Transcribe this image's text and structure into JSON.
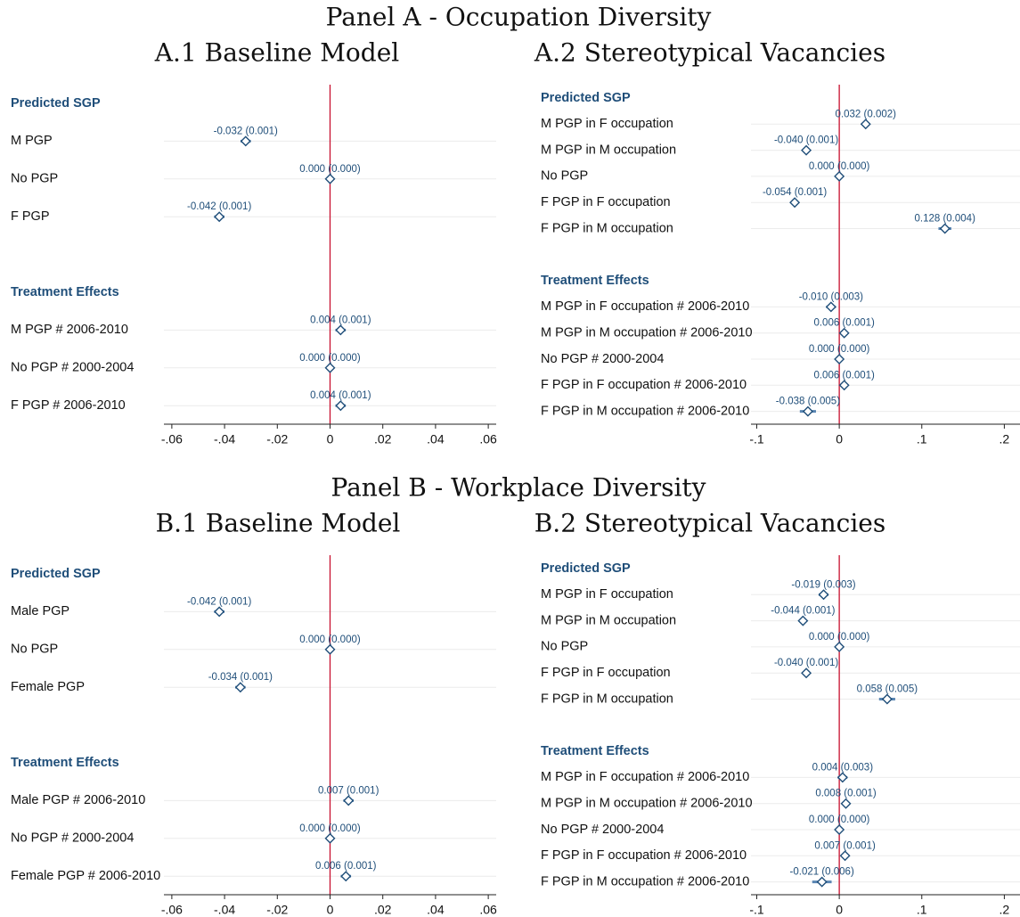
{
  "panel_titles": [
    "Panel A - Occupation Diversity",
    "Panel B - Workplace Diversity"
  ],
  "chart_data": [
    {
      "type": "coefplot",
      "title": "A.1 Baseline Model",
      "color": "#1f4e79",
      "xline": 0,
      "xline_color": "#c8102e",
      "xlim": [
        -0.063,
        0.063
      ],
      "xticks": [
        {
          "value": -0.06,
          "label": "-.06"
        },
        {
          "value": -0.04,
          "label": "-.04"
        },
        {
          "value": -0.02,
          "label": "-.02"
        },
        0,
        {
          "value": 0.02,
          "label": ".02"
        },
        {
          "value": 0.04,
          "label": ".04"
        },
        {
          "value": 0.06,
          "label": ".06"
        }
      ],
      "groups": [
        {
          "name": "Predicted SGP",
          "categories": [
            "M PGP",
            "No PGP",
            "F PGP"
          ],
          "values": [
            -0.032,
            0,
            -0.042
          ],
          "errors": [
            0.001,
            0,
            0.001
          ],
          "value_labels": [
            "-0.032 (0.001)",
            "0.000 (0.000)",
            "-0.042 (0.001)"
          ]
        },
        {
          "name": "Treatment Effects",
          "categories": [
            "M PGP # 2006-2010",
            "No PGP # 2000-2004",
            "F PGP # 2006-2010"
          ],
          "values": [
            0.004,
            0,
            0.004
          ],
          "errors": [
            0.001,
            0,
            0.001
          ],
          "value_labels": [
            "0.004 (0.001)",
            "0.000 (0.000)",
            "0.004 (0.001)"
          ]
        }
      ]
    },
    {
      "type": "coefplot",
      "title": "A.2 Stereotypical Vacancies",
      "color": "#1f4e79",
      "xline": 0,
      "xline_color": "#c8102e",
      "xlim": [
        -0.107,
        0.219
      ],
      "xticks": [
        {
          "value": -0.1,
          "label": "-.1"
        },
        0,
        {
          "value": 0.1,
          "label": ".1"
        },
        {
          "value": 0.2,
          "label": ".2"
        }
      ],
      "groups": [
        {
          "name": "Predicted SGP",
          "categories": [
            "M PGP in F occupation",
            "M PGP in M occupation",
            "No PGP",
            "F PGP in F occupation",
            "F PGP in M occupation"
          ],
          "values": [
            0.032,
            -0.04,
            0,
            -0.054,
            0.128
          ],
          "errors": [
            0.002,
            0.001,
            0,
            0.001,
            0.004
          ],
          "value_labels": [
            "0.032 (0.002)",
            "-0.040 (0.001)",
            "0.000 (0.000)",
            "-0.054 (0.001)",
            "0.128 (0.004)"
          ]
        },
        {
          "name": "Treatment Effects",
          "categories": [
            "M PGP in F occupation # 2006-2010",
            "M PGP in M occupation # 2006-2010",
            "No PGP # 2000-2004",
            "F PGP in F occupation # 2006-2010",
            "F PGP in M occupation # 2006-2010"
          ],
          "values": [
            -0.01,
            0.006,
            0,
            0.006,
            -0.038
          ],
          "errors": [
            0.003,
            0.001,
            0,
            0.001,
            0.005
          ],
          "value_labels": [
            "-0.010 (0.003)",
            "0.006 (0.001)",
            "0.000 (0.000)",
            "0.006 (0.001)",
            "-0.038 (0.005)"
          ]
        }
      ]
    },
    {
      "type": "coefplot",
      "title": "B.1 Baseline Model",
      "color": "#1f4e79",
      "xline": 0,
      "xline_color": "#c8102e",
      "xlim": [
        -0.063,
        0.063
      ],
      "xticks": [
        {
          "value": -0.06,
          "label": "-.06"
        },
        {
          "value": -0.04,
          "label": "-.04"
        },
        {
          "value": -0.02,
          "label": "-.02"
        },
        0,
        {
          "value": 0.02,
          "label": ".02"
        },
        {
          "value": 0.04,
          "label": ".04"
        },
        {
          "value": 0.06,
          "label": ".06"
        }
      ],
      "groups": [
        {
          "name": "Predicted SGP",
          "categories": [
            "Male PGP",
            "No PGP",
            "Female PGP"
          ],
          "values": [
            -0.042,
            0,
            -0.034
          ],
          "errors": [
            0.001,
            0,
            0.001
          ],
          "value_labels": [
            "-0.042 (0.001)",
            "0.000 (0.000)",
            "-0.034 (0.001)"
          ]
        },
        {
          "name": "Treatment Effects",
          "categories": [
            "Male PGP # 2006-2010",
            "No PGP # 2000-2004",
            "Female PGP # 2006-2010"
          ],
          "values": [
            0.007,
            0,
            0.006
          ],
          "errors": [
            0.001,
            0,
            0.001
          ],
          "value_labels": [
            "0.007 (0.001)",
            "0.000 (0.000)",
            "0.006 (0.001)"
          ]
        }
      ]
    },
    {
      "type": "coefplot",
      "title": "B.2 Stereotypical Vacancies",
      "color": "#1f4e79",
      "xline": 0,
      "xline_color": "#c8102e",
      "xlim": [
        -0.107,
        0.219
      ],
      "xticks": [
        {
          "value": -0.1,
          "label": "-.1"
        },
        0,
        {
          "value": 0.1,
          "label": ".1"
        },
        {
          "value": 0.2,
          "label": ".2"
        }
      ],
      "groups": [
        {
          "name": "Predicted SGP",
          "categories": [
            "M PGP in F occupation",
            "M PGP in M occupation",
            "No PGP",
            "F PGP in F occupation",
            "F PGP in M occupation"
          ],
          "values": [
            -0.019,
            -0.044,
            0,
            -0.04,
            0.058
          ],
          "errors": [
            0.003,
            0.001,
            0,
            0.001,
            0.005
          ],
          "value_labels": [
            "-0.019 (0.003)",
            "-0.044 (0.001)",
            "0.000 (0.000)",
            "-0.040 (0.001)",
            "0.058 (0.005)"
          ]
        },
        {
          "name": "Treatment Effects",
          "categories": [
            "M PGP in F occupation # 2006-2010",
            "M PGP in M occupation # 2006-2010",
            "No PGP # 2000-2004",
            "F PGP in F occupation # 2006-2010",
            "F PGP in M occupation # 2006-2010"
          ],
          "values": [
            0.004,
            0.008,
            0,
            0.007,
            -0.021
          ],
          "errors": [
            0.003,
            0.001,
            0,
            0.001,
            0.006
          ],
          "value_labels": [
            "0.004 (0.003)",
            "0.008 (0.001)",
            "0.000 (0.000)",
            "0.007 (0.001)",
            "-0.021 (0.006)"
          ]
        }
      ]
    }
  ]
}
